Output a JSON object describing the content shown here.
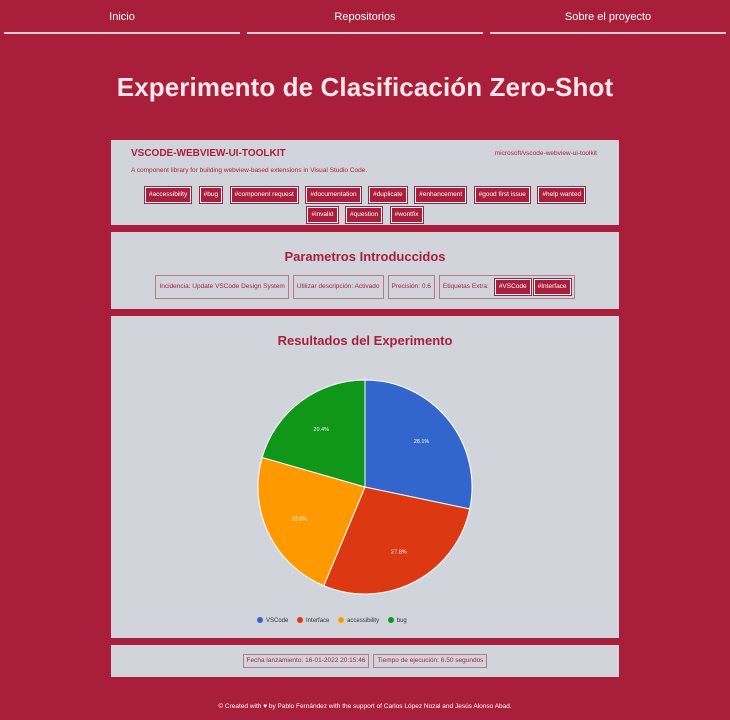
{
  "nav": {
    "items": [
      {
        "label": "Inicio"
      },
      {
        "label": "Repositorios"
      },
      {
        "label": "Sobre el proyecto"
      }
    ]
  },
  "page": {
    "title": "Experimento de Clasificación Zero-Shot"
  },
  "repo": {
    "name": "VSCODE-WEBVIEW-UI-TOOLKIT",
    "path": "microsoft/vscode-webview-ui-toolkit",
    "description": "A component library for building webview-based extensions in Visual Studio Code.",
    "tags": [
      "#accessibility",
      "#bug",
      "#component request",
      "#documentation",
      "#duplicate",
      "#enhancement",
      "#good first issue",
      "#help wanted",
      "#invalid",
      "#question",
      "#wontfix"
    ]
  },
  "params": {
    "title": "Parametros Introduccidos",
    "incidencia": "Incidencia: Update VSCode Design System",
    "descripcion": "Utilizar descripción: Activado",
    "precision": "Precisión: 0.6",
    "extra_label": "Etiquetas Extra:",
    "extra_tags": [
      "#VSCode",
      "#Interface"
    ]
  },
  "results": {
    "title": "Resultados del Experimento"
  },
  "chart_data": {
    "type": "pie",
    "categories": [
      "VSCode",
      "Interface",
      "accessibility",
      "bug"
    ],
    "values": [
      28.1,
      27.8,
      23.0,
      20.4
    ],
    "colors": [
      "#3366cc",
      "#dc3912",
      "#ff9900",
      "#109618"
    ],
    "labels": [
      "28.1%",
      "27.8%",
      "23.0%",
      "20.4%"
    ],
    "legend_position": "bottom"
  },
  "meta": {
    "fecha": "Fecha lanzamiento: 16-01-2022 20:15:46",
    "tiempo": "Tiempo de ejecución: 6.50 segundos"
  },
  "footer": {
    "text": "© Created with ♥ by Pablo Fernández with the support of Carlos López Nozal and Jesús Alonso Abad."
  }
}
